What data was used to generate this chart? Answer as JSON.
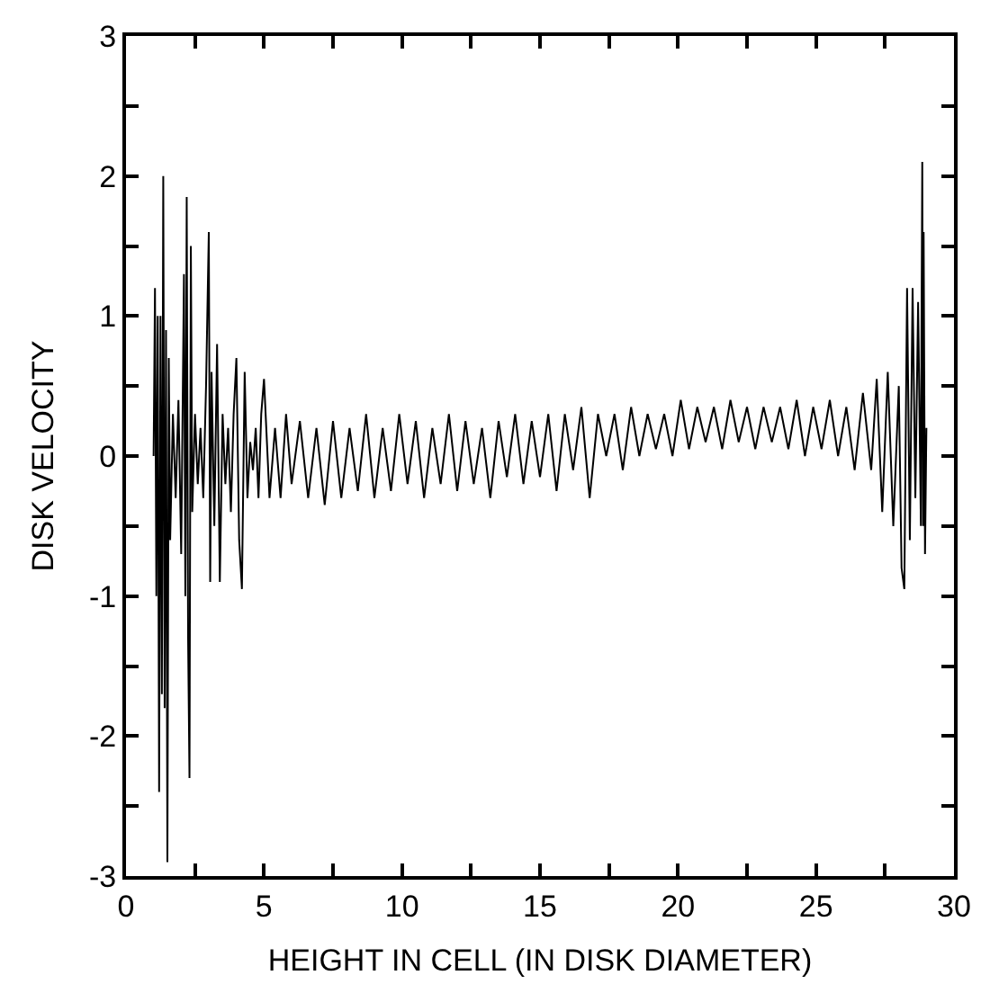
{
  "chart_data": {
    "type": "line",
    "xlabel": "HEIGHT IN CELL (IN DISK DIAMETER)",
    "ylabel": "DISK VELOCITY",
    "xlim": [
      0,
      30
    ],
    "ylim": [
      -3,
      3
    ],
    "xticks": [
      0,
      {
        "value": 2.5,
        "label": null
      },
      5,
      {
        "value": 7.5,
        "label": null
      },
      10,
      {
        "value": 12.5,
        "label": null
      },
      15,
      {
        "value": 17.5,
        "label": null
      },
      20,
      {
        "value": 22.5,
        "label": null
      },
      25,
      {
        "value": 27.5,
        "label": null
      },
      30
    ],
    "yticks": [
      -3,
      {
        "value": -2.5,
        "label": null
      },
      -2,
      {
        "value": -1.5,
        "label": null
      },
      -1,
      {
        "value": -0.5,
        "label": null
      },
      0,
      {
        "value": 0.5,
        "label": null
      },
      1,
      {
        "value": 1.5,
        "label": null
      },
      2,
      {
        "value": 2.5,
        "label": null
      },
      3
    ],
    "marker": "none",
    "line_style": "solid",
    "series": [
      {
        "color": "#000000",
        "x": [
          1.0,
          1.05,
          1.1,
          1.15,
          1.2,
          1.25,
          1.3,
          1.35,
          1.4,
          1.45,
          1.5,
          1.55,
          1.6,
          1.7,
          1.8,
          1.9,
          2.0,
          2.1,
          2.15,
          2.2,
          2.25,
          2.3,
          2.35,
          2.4,
          2.5,
          2.6,
          2.7,
          2.8,
          2.9,
          3.0,
          3.05,
          3.1,
          3.2,
          3.3,
          3.4,
          3.5,
          3.6,
          3.7,
          3.8,
          3.9,
          4.0,
          4.1,
          4.2,
          4.3,
          4.4,
          4.5,
          4.6,
          4.7,
          4.8,
          4.9,
          5.0,
          5.2,
          5.4,
          5.6,
          5.8,
          6.0,
          6.3,
          6.6,
          6.9,
          7.2,
          7.5,
          7.8,
          8.1,
          8.4,
          8.7,
          9.0,
          9.3,
          9.6,
          9.9,
          10.2,
          10.5,
          10.8,
          11.1,
          11.4,
          11.7,
          12.0,
          12.3,
          12.6,
          12.9,
          13.2,
          13.5,
          13.8,
          14.1,
          14.4,
          14.7,
          15.0,
          15.3,
          15.6,
          15.9,
          16.2,
          16.5,
          16.8,
          17.1,
          17.4,
          17.7,
          18.0,
          18.3,
          18.6,
          18.9,
          19.2,
          19.5,
          19.8,
          20.1,
          20.4,
          20.7,
          21.0,
          21.3,
          21.6,
          21.9,
          22.2,
          22.5,
          22.8,
          23.1,
          23.4,
          23.7,
          24.0,
          24.3,
          24.6,
          24.9,
          25.2,
          25.5,
          25.8,
          26.1,
          26.4,
          26.7,
          27.0,
          27.2,
          27.4,
          27.6,
          27.8,
          28.0,
          28.1,
          28.2,
          28.3,
          28.4,
          28.5,
          28.6,
          28.7,
          28.8,
          28.82,
          28.85,
          28.88,
          28.9,
          28.95,
          29.0
        ],
        "values": [
          0.0,
          1.2,
          -1.0,
          1.0,
          -2.4,
          1.0,
          -1.7,
          2.0,
          -1.8,
          0.9,
          -2.9,
          0.7,
          -0.6,
          0.3,
          -0.3,
          0.4,
          -0.7,
          1.3,
          -1.0,
          1.85,
          -1.3,
          -2.3,
          1.5,
          -0.4,
          0.3,
          -0.2,
          0.2,
          -0.3,
          0.5,
          1.6,
          -0.9,
          0.6,
          -0.5,
          0.8,
          -0.9,
          0.3,
          -0.2,
          0.2,
          -0.4,
          0.3,
          0.7,
          -0.6,
          -0.95,
          0.6,
          -0.3,
          0.1,
          -0.1,
          0.2,
          -0.3,
          0.3,
          0.55,
          -0.3,
          0.2,
          -0.3,
          0.3,
          -0.2,
          0.25,
          -0.3,
          0.2,
          -0.35,
          0.25,
          -0.3,
          0.2,
          -0.25,
          0.3,
          -0.3,
          0.2,
          -0.25,
          0.3,
          -0.2,
          0.25,
          -0.3,
          0.2,
          -0.2,
          0.3,
          -0.25,
          0.25,
          -0.2,
          0.2,
          -0.3,
          0.25,
          -0.15,
          0.3,
          -0.2,
          0.25,
          -0.15,
          0.3,
          -0.25,
          0.3,
          -0.1,
          0.35,
          -0.3,
          0.3,
          0.0,
          0.3,
          -0.1,
          0.35,
          0.0,
          0.3,
          0.05,
          0.3,
          0.0,
          0.4,
          0.05,
          0.35,
          0.1,
          0.35,
          0.05,
          0.4,
          0.1,
          0.35,
          0.05,
          0.35,
          0.1,
          0.35,
          0.05,
          0.4,
          0.0,
          0.35,
          0.05,
          0.4,
          0.0,
          0.35,
          -0.1,
          0.45,
          -0.1,
          0.55,
          -0.4,
          0.6,
          -0.5,
          0.5,
          -0.8,
          -0.95,
          1.2,
          -0.6,
          1.2,
          -0.3,
          1.1,
          -0.5,
          0.8,
          2.1,
          -0.5,
          1.6,
          -0.7,
          0.2
        ]
      }
    ]
  }
}
